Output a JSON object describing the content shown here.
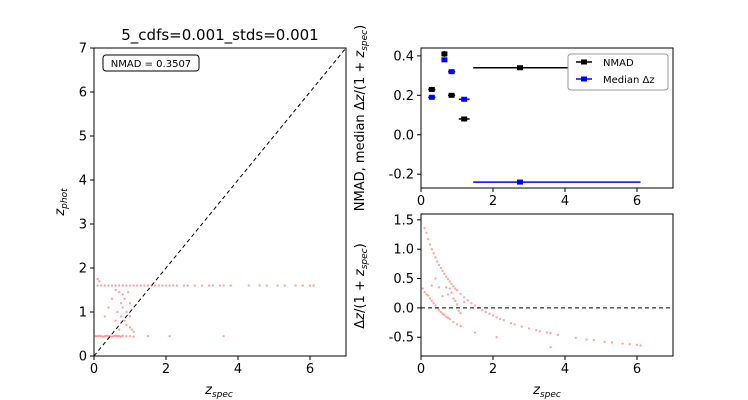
{
  "colors": {
    "nmad": "#000000",
    "median": "#0000ff",
    "scatter": "#ff0000"
  },
  "chart_data": [
    {
      "id": "zphot_vs_zspec",
      "type": "scatter",
      "title": "5_cdfs=0.001_stds=0.001",
      "xlabel": "z_spec",
      "ylabel": "z_phot",
      "xlim": [
        0,
        7
      ],
      "ylim": [
        0,
        7
      ],
      "xticks": [
        0,
        2,
        4,
        6
      ],
      "yticks": [
        0,
        1,
        2,
        3,
        4,
        5,
        6,
        7
      ],
      "grid": false,
      "annotation": "NMAD = 0.3507",
      "reference_line": "y = x (dashed)",
      "points": [
        [
          0.05,
          0.45
        ],
        [
          0.1,
          0.45
        ],
        [
          0.15,
          0.46
        ],
        [
          0.2,
          0.45
        ],
        [
          0.25,
          0.44
        ],
        [
          0.3,
          0.45
        ],
        [
          0.35,
          0.46
        ],
        [
          0.4,
          0.45
        ],
        [
          0.45,
          0.45
        ],
        [
          0.5,
          0.44
        ],
        [
          0.55,
          0.45
        ],
        [
          0.6,
          0.46
        ],
        [
          0.65,
          0.45
        ],
        [
          0.7,
          0.45
        ],
        [
          0.75,
          0.44
        ],
        [
          0.8,
          0.46
        ],
        [
          0.9,
          0.45
        ],
        [
          1.0,
          0.45
        ],
        [
          1.1,
          0.44
        ],
        [
          1.5,
          0.45
        ],
        [
          2.1,
          0.45
        ],
        [
          3.6,
          0.45
        ],
        [
          0.1,
          1.6
        ],
        [
          0.2,
          1.6
        ],
        [
          0.3,
          1.6
        ],
        [
          0.4,
          1.6
        ],
        [
          0.5,
          1.6
        ],
        [
          0.6,
          1.6
        ],
        [
          0.7,
          1.6
        ],
        [
          0.8,
          1.6
        ],
        [
          0.9,
          1.6
        ],
        [
          1.0,
          1.6
        ],
        [
          1.1,
          1.6
        ],
        [
          1.2,
          1.6
        ],
        [
          1.3,
          1.6
        ],
        [
          1.4,
          1.6
        ],
        [
          1.5,
          1.6
        ],
        [
          1.6,
          1.6
        ],
        [
          1.7,
          1.6
        ],
        [
          1.8,
          1.6
        ],
        [
          1.9,
          1.6
        ],
        [
          2.0,
          1.6
        ],
        [
          2.1,
          1.6
        ],
        [
          2.2,
          1.6
        ],
        [
          2.3,
          1.6
        ],
        [
          2.5,
          1.6
        ],
        [
          2.6,
          1.6
        ],
        [
          2.8,
          1.6
        ],
        [
          3.0,
          1.6
        ],
        [
          3.2,
          1.6
        ],
        [
          3.3,
          1.6
        ],
        [
          3.5,
          1.6
        ],
        [
          3.6,
          1.6
        ],
        [
          3.8,
          1.6
        ],
        [
          4.3,
          1.6
        ],
        [
          4.6,
          1.6
        ],
        [
          4.8,
          1.6
        ],
        [
          5.1,
          1.6
        ],
        [
          5.3,
          1.6
        ],
        [
          5.6,
          1.6
        ],
        [
          5.8,
          1.6
        ],
        [
          6.0,
          1.6
        ],
        [
          6.1,
          1.6
        ],
        [
          0.1,
          1.75
        ],
        [
          0.15,
          1.7
        ],
        [
          0.6,
          1.5
        ],
        [
          0.7,
          1.45
        ],
        [
          0.8,
          1.4
        ],
        [
          0.75,
          1.2
        ],
        [
          0.8,
          1.1
        ],
        [
          0.85,
          1.3
        ],
        [
          0.9,
          1.0
        ],
        [
          0.75,
          0.9
        ],
        [
          0.85,
          0.8
        ],
        [
          0.9,
          0.7
        ],
        [
          1.0,
          0.65
        ],
        [
          1.0,
          0.9
        ],
        [
          1.05,
          0.6
        ],
        [
          1.1,
          0.55
        ],
        [
          0.3,
          0.9
        ],
        [
          0.4,
          1.1
        ],
        [
          0.5,
          1.3
        ],
        [
          0.6,
          0.8
        ],
        [
          0.95,
          1.45
        ],
        [
          1.0,
          1.2
        ],
        [
          0.7,
          0.6
        ],
        [
          0.65,
          1.0
        ]
      ]
    },
    {
      "id": "nmad_median_by_bin",
      "type": "scatter",
      "ylabel": "NMAD, median Δz/(1+z_spec)",
      "xlim": [
        0,
        7
      ],
      "ylim": [
        -0.27,
        0.44
      ],
      "xticks": [
        0,
        2,
        4,
        6
      ],
      "yticks": [
        -0.2,
        0.0,
        0.2,
        0.4
      ],
      "grid": false,
      "legend": "top-right",
      "series": [
        {
          "name": "NMAD",
          "points": [
            {
              "x": 0.3,
              "y": 0.23,
              "xerr": [
                0.2,
                0.4
              ],
              "yerr": 0.01
            },
            {
              "x": 0.65,
              "y": 0.41,
              "xerr": [
                0.6,
                0.7
              ],
              "yerr": 0.015
            },
            {
              "x": 0.85,
              "y": 0.2,
              "xerr": [
                0.75,
                0.95
              ],
              "yerr": 0.01
            },
            {
              "x": 1.2,
              "y": 0.08,
              "xerr": [
                1.05,
                1.35
              ],
              "yerr": 0.01
            },
            {
              "x": 2.75,
              "y": 0.34,
              "xerr": [
                1.45,
                6.1
              ],
              "yerr": 0.01
            }
          ]
        },
        {
          "name": "Median Δz",
          "points": [
            {
              "x": 0.3,
              "y": 0.19,
              "xerr": [
                0.2,
                0.4
              ],
              "yerr": 0.01
            },
            {
              "x": 0.65,
              "y": 0.38,
              "xerr": [
                0.6,
                0.7
              ],
              "yerr": 0.01
            },
            {
              "x": 0.85,
              "y": 0.32,
              "xerr": [
                0.75,
                0.95
              ],
              "yerr": 0.01
            },
            {
              "x": 1.2,
              "y": 0.18,
              "xerr": [
                1.05,
                1.35
              ],
              "yerr": 0.01
            },
            {
              "x": 2.75,
              "y": -0.24,
              "xerr": [
                1.45,
                6.1
              ],
              "yerr": 0.005
            }
          ]
        }
      ]
    },
    {
      "id": "residual_vs_zspec",
      "type": "scatter",
      "xlabel": "z_spec",
      "ylabel": "Δz/(1+z_spec)",
      "xlim": [
        0,
        7
      ],
      "ylim": [
        -0.82,
        1.6
      ],
      "xticks": [
        0,
        2,
        4,
        6
      ],
      "yticks": [
        -0.5,
        0.0,
        0.5,
        1.0,
        1.5
      ],
      "grid": false,
      "reference_line": "y = 0 (dashed)",
      "points": [
        [
          0.1,
          1.36
        ],
        [
          0.15,
          1.28
        ],
        [
          0.2,
          1.17
        ],
        [
          0.25,
          1.08
        ],
        [
          0.3,
          1.0
        ],
        [
          0.35,
          0.93
        ],
        [
          0.4,
          0.86
        ],
        [
          0.45,
          0.79
        ],
        [
          0.5,
          0.73
        ],
        [
          0.55,
          0.68
        ],
        [
          0.6,
          0.63
        ],
        [
          0.65,
          0.58
        ],
        [
          0.7,
          0.53
        ],
        [
          0.75,
          0.49
        ],
        [
          0.8,
          0.45
        ],
        [
          0.85,
          0.41
        ],
        [
          0.9,
          0.37
        ],
        [
          0.95,
          0.33
        ],
        [
          1.0,
          0.3
        ],
        [
          1.1,
          0.24
        ],
        [
          1.2,
          0.18
        ],
        [
          1.3,
          0.13
        ],
        [
          1.4,
          0.08
        ],
        [
          1.5,
          0.04
        ],
        [
          1.6,
          0.0
        ],
        [
          1.7,
          -0.04
        ],
        [
          1.8,
          -0.07
        ],
        [
          1.9,
          -0.1
        ],
        [
          2.0,
          -0.13
        ],
        [
          2.1,
          -0.16
        ],
        [
          2.2,
          -0.19
        ],
        [
          2.3,
          -0.21
        ],
        [
          2.5,
          -0.26
        ],
        [
          2.6,
          -0.28
        ],
        [
          2.8,
          -0.32
        ],
        [
          3.0,
          -0.35
        ],
        [
          3.2,
          -0.38
        ],
        [
          3.3,
          -0.4
        ],
        [
          3.5,
          -0.42
        ],
        [
          3.6,
          -0.43
        ],
        [
          3.8,
          -0.46
        ],
        [
          4.3,
          -0.51
        ],
        [
          4.6,
          -0.54
        ],
        [
          4.8,
          -0.55
        ],
        [
          5.1,
          -0.58
        ],
        [
          5.3,
          -0.59
        ],
        [
          5.6,
          -0.61
        ],
        [
          5.8,
          -0.62
        ],
        [
          6.0,
          -0.63
        ],
        [
          6.1,
          -0.64
        ],
        [
          0.05,
          0.33
        ],
        [
          0.1,
          0.27
        ],
        [
          0.15,
          0.23
        ],
        [
          0.2,
          0.21
        ],
        [
          0.25,
          0.16
        ],
        [
          0.3,
          0.12
        ],
        [
          0.35,
          0.08
        ],
        [
          0.4,
          0.04
        ],
        [
          0.45,
          0.0
        ],
        [
          0.5,
          -0.04
        ],
        [
          0.55,
          -0.07
        ],
        [
          0.6,
          -0.1
        ],
        [
          0.65,
          -0.12
        ],
        [
          0.7,
          -0.15
        ],
        [
          0.75,
          -0.17
        ],
        [
          0.8,
          -0.19
        ],
        [
          0.9,
          -0.24
        ],
        [
          1.0,
          -0.28
        ],
        [
          1.1,
          -0.31
        ],
        [
          1.5,
          -0.42
        ],
        [
          2.1,
          -0.5
        ],
        [
          3.6,
          -0.67
        ],
        [
          0.8,
          0.33
        ],
        [
          0.9,
          0.16
        ],
        [
          0.85,
          0.26
        ],
        [
          1.0,
          0.06
        ],
        [
          1.05,
          -0.05
        ],
        [
          1.1,
          -0.09
        ],
        [
          1.2,
          0.1
        ],
        [
          0.75,
          0.23
        ],
        [
          0.95,
          0.12
        ],
        [
          0.7,
          0.35
        ],
        [
          0.6,
          0.2
        ],
        [
          0.5,
          0.35
        ],
        [
          0.4,
          0.5
        ],
        [
          0.3,
          0.38
        ]
      ]
    }
  ]
}
